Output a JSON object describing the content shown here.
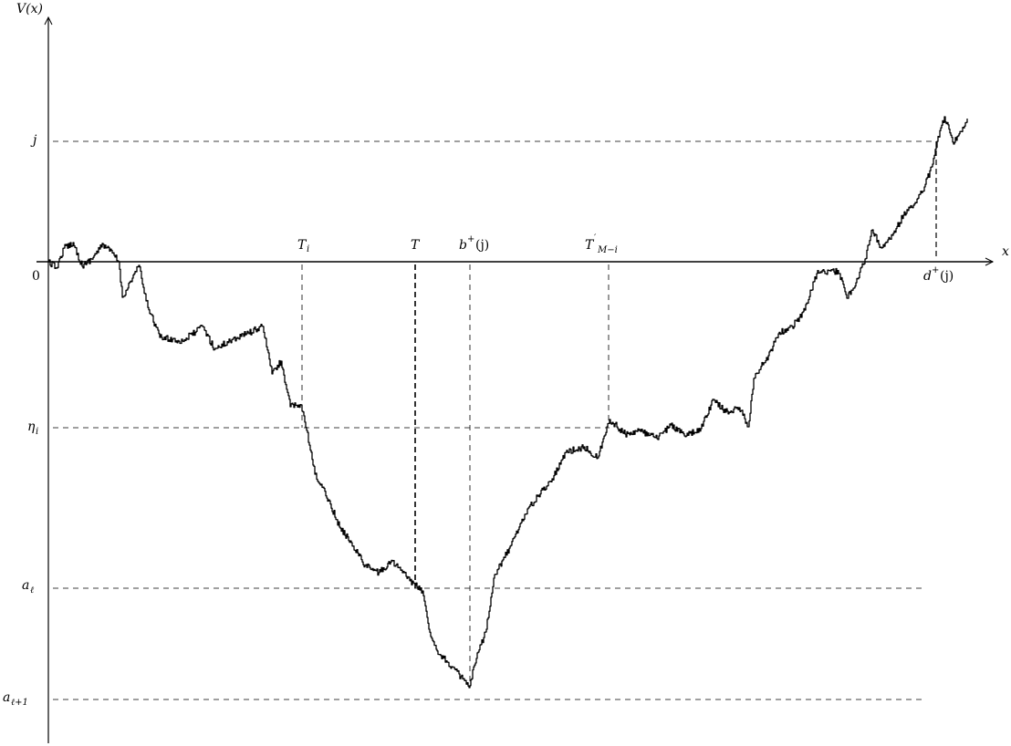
{
  "axes": {
    "y_label": "V(x)",
    "x_label": "x",
    "origin_label": "0"
  },
  "level_labels": {
    "j": "j",
    "eta_i": "η",
    "eta_i_sub": "i",
    "a_l": "a",
    "a_l_sub": "ℓ",
    "a_l1": "a",
    "a_l1_sub": "ℓ+1"
  },
  "point_labels": {
    "T_i": "T",
    "T_i_sub": "i",
    "T": "T",
    "b_plus": "b",
    "b_plus_sup": "+",
    "b_plus_arg": "(j)",
    "T_prime": "T",
    "T_prime_mark": "′",
    "T_prime_sub": "M−i",
    "d_plus": "d",
    "d_plus_sup": "+",
    "d_plus_arg": "(j)"
  },
  "colors": {
    "ink": "#000000",
    "background": "#ffffff"
  }
}
